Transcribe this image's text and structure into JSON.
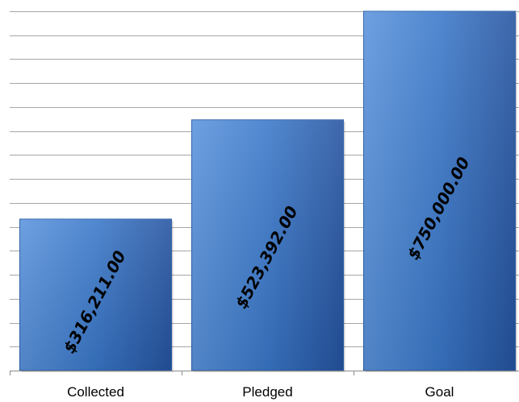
{
  "chart_data": {
    "type": "bar",
    "categories": [
      "Collected",
      "Pledged",
      "Goal"
    ],
    "values": [
      316211.0,
      523392.0,
      750000.0
    ],
    "data_labels": [
      "$316,211.00",
      "$523,392.00",
      "$750,000.00"
    ],
    "title": "",
    "xlabel": "",
    "ylabel": "",
    "ylim": [
      0,
      750000
    ],
    "y_tick_step": 50000,
    "grid": true,
    "legend": "none",
    "bar_color": "#3a78c9",
    "bar_color_dark": "#2553a0",
    "bar_color_light": "#5a93dd"
  }
}
